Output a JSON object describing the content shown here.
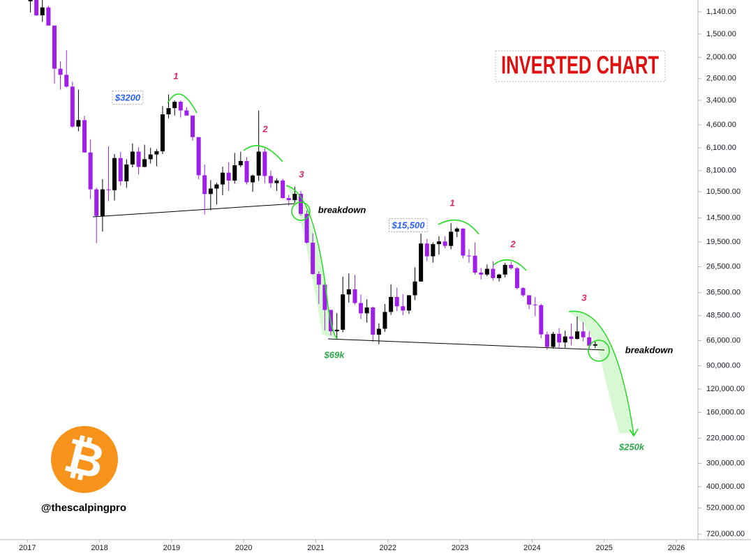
{
  "chart_data": {
    "type": "candlestick",
    "title": "INVERTED CHART",
    "log_scale": true,
    "inverted": true,
    "up_color": "#a01fe6",
    "down_color": "#000000",
    "x": [
      2017.042,
      2017.125,
      2017.208,
      2017.292,
      2017.375,
      2017.458,
      2017.542,
      2017.625,
      2017.708,
      2017.792,
      2017.875,
      2017.958,
      2018.042,
      2018.125,
      2018.208,
      2018.292,
      2018.375,
      2018.458,
      2018.542,
      2018.625,
      2018.708,
      2018.792,
      2018.875,
      2018.958,
      2019.042,
      2019.125,
      2019.208,
      2019.292,
      2019.375,
      2019.458,
      2019.542,
      2019.625,
      2019.708,
      2019.792,
      2019.875,
      2019.958,
      2020.042,
      2020.125,
      2020.208,
      2020.292,
      2020.375,
      2020.458,
      2020.542,
      2020.625,
      2020.708,
      2020.792,
      2020.875,
      2020.958,
      2021.042,
      2021.125,
      2021.208,
      2021.292,
      2021.375,
      2021.458,
      2021.542,
      2021.625,
      2021.708,
      2021.792,
      2021.875,
      2021.958,
      2022.042,
      2022.125,
      2022.208,
      2022.292,
      2022.375,
      2022.458,
      2022.542,
      2022.625,
      2022.708,
      2022.792,
      2022.875,
      2022.958,
      2023.042,
      2023.125,
      2023.208,
      2023.292,
      2023.375,
      2023.458,
      2023.542,
      2023.625,
      2023.708,
      2023.792,
      2023.875,
      2023.958,
      2024.042,
      2024.125,
      2024.208,
      2024.292,
      2024.375,
      2024.458,
      2024.542,
      2024.625,
      2024.708,
      2024.792,
      2024.875
    ],
    "open": [
      1000,
      970,
      1190,
      1080,
      1350,
      2300,
      2480,
      2870,
      4700,
      4340,
      6470,
      10200,
      14150,
      10200,
      10300,
      6930,
      9240,
      7500,
      6400,
      7730,
      7030,
      6630,
      6370,
      4040,
      3740,
      3460,
      3850,
      4100,
      5350,
      8570,
      10800,
      10100,
      9600,
      8300,
      9150,
      7570,
      7190,
      9350,
      8600,
      6400,
      8650,
      9450,
      9140,
      11350,
      11650,
      10780,
      13800,
      19700,
      29000,
      33100,
      45200,
      58800,
      57700,
      37300,
      35000,
      41500,
      47100,
      43800,
      61300,
      57000,
      46300,
      38500,
      43200,
      45500,
      37700,
      31800,
      19900,
      23300,
      20050,
      19400,
      20500,
      17200,
      16550,
      23100,
      23150,
      28500,
      29200,
      27200,
      30500,
      29200,
      25900,
      27000,
      34500,
      37700,
      42300,
      42600,
      61100,
      71300,
      60700,
      67500,
      62700,
      64600,
      58900,
      63300,
      70200
    ],
    "high": [
      1150,
      1200,
      1290,
      1350,
      2760,
      2980,
      2900,
      4760,
      4980,
      6470,
      11500,
      19800,
      17200,
      11800,
      11700,
      9750,
      10000,
      7770,
      8500,
      7760,
      7410,
      7680,
      6590,
      4240,
      4100,
      4200,
      4100,
      5600,
      9000,
      13900,
      13200,
      12300,
      10950,
      10400,
      9500,
      7750,
      9600,
      10500,
      9200,
      9450,
      10000,
      10400,
      11450,
      12470,
      12050,
      14100,
      19900,
      29300,
      41950,
      58300,
      61800,
      64900,
      59500,
      41300,
      42300,
      50500,
      52900,
      67000,
      69000,
      59100,
      48000,
      45800,
      48200,
      47400,
      40000,
      31900,
      24700,
      25200,
      22800,
      21100,
      21400,
      18400,
      23900,
      25250,
      29200,
      31000,
      29800,
      31400,
      31800,
      30200,
      27500,
      35000,
      38400,
      44700,
      48900,
      64000,
      73800,
      72800,
      71900,
      72000,
      70000,
      65100,
      66500,
      73600,
      72400
    ],
    "low": [
      780,
      920,
      900,
      1060,
      1350,
      2100,
      1830,
      2700,
      2980,
      4110,
      5500,
      10000,
      9000,
      6000,
      6600,
      6430,
      7030,
      5780,
      6070,
      5880,
      6100,
      6200,
      3650,
      3160,
      3400,
      3400,
      3700,
      4100,
      5350,
      7500,
      9100,
      9400,
      7700,
      7300,
      6500,
      6400,
      6850,
      8500,
      3850,
      6150,
      8100,
      8900,
      8950,
      10900,
      9880,
      10400,
      13200,
      17600,
      28000,
      32300,
      45000,
      47000,
      30000,
      28800,
      29300,
      37300,
      39600,
      43300,
      53300,
      42000,
      32900,
      34300,
      37200,
      37600,
      26700,
      17600,
      18800,
      19600,
      18200,
      18200,
      15500,
      16300,
      16500,
      21400,
      19600,
      26900,
      25800,
      24800,
      28900,
      25300,
      24900,
      26600,
      34100,
      37600,
      38500,
      41900,
      59000,
      59200,
      56600,
      58400,
      53500,
      49000,
      52500,
      58900,
      66800
    ],
    "close": [
      970,
      1190,
      1080,
      1350,
      2300,
      2480,
      2870,
      4700,
      4340,
      6470,
      10200,
      14150,
      10200,
      10300,
      6930,
      9240,
      7500,
      6400,
      7730,
      7030,
      6630,
      6370,
      4040,
      3740,
      3460,
      3850,
      4100,
      5350,
      8570,
      10800,
      10100,
      9600,
      8300,
      9150,
      7570,
      7190,
      9350,
      8600,
      6400,
      8650,
      9450,
      9140,
      11350,
      11650,
      10780,
      13800,
      19700,
      29000,
      33100,
      45200,
      58800,
      57700,
      37300,
      35000,
      41500,
      47100,
      43800,
      61300,
      57000,
      46300,
      38500,
      43200,
      45500,
      37700,
      31800,
      19900,
      23300,
      20050,
      19400,
      20500,
      17200,
      16550,
      23100,
      23150,
      28500,
      29200,
      27200,
      30500,
      29200,
      25900,
      27000,
      34500,
      37700,
      42300,
      42600,
      61100,
      71300,
      60700,
      67500,
      62700,
      64600,
      58900,
      63300,
      70200,
      69000
    ],
    "xlim": [
      2016.62,
      2026.3
    ],
    "xticks": [
      2017,
      2018,
      2019,
      2020,
      2021,
      2022,
      2023,
      2024,
      2025,
      2026
    ],
    "ylim": [
      985,
      770000
    ],
    "yticks": [
      {
        "value": 1140,
        "label": "1,140.00"
      },
      {
        "value": 1500,
        "label": "1,500.00"
      },
      {
        "value": 2000,
        "label": "2,000.00"
      },
      {
        "value": 2600,
        "label": "2,600.00"
      },
      {
        "value": 3400,
        "label": "3,400.00"
      },
      {
        "value": 4600,
        "label": "4,600.00"
      },
      {
        "value": 6100,
        "label": "6,100.00"
      },
      {
        "value": 8100,
        "label": "8,100.00"
      },
      {
        "value": 10500,
        "label": "10,500.00"
      },
      {
        "value": 14500,
        "label": "14,500.00"
      },
      {
        "value": 19500,
        "label": "19,500.00"
      },
      {
        "value": 26500,
        "label": "26,500.00"
      },
      {
        "value": 36500,
        "label": "36,500.00"
      },
      {
        "value": 48500,
        "label": "48,500.00"
      },
      {
        "value": 66000,
        "label": "66,000.00"
      },
      {
        "value": 90000,
        "label": "90,000.00"
      },
      {
        "value": 120000,
        "label": "120,000.00"
      },
      {
        "value": 160000,
        "label": "160,000.00"
      },
      {
        "value": 220000,
        "label": "220,000.00"
      },
      {
        "value": 300000,
        "label": "300,000.00"
      },
      {
        "value": 400000,
        "label": "400,000.00"
      },
      {
        "value": 520000,
        "label": "520,000.00"
      },
      {
        "value": 720000,
        "label": "720,000.00"
      }
    ],
    "annotations": [
      "$3200",
      "1",
      "2",
      "3",
      "breakdown",
      "$69k",
      "$15,500",
      "1",
      "2",
      "3",
      "breakdown",
      "$250k"
    ],
    "logo_symbol": "₿",
    "handle": "@thescalpingpro"
  }
}
